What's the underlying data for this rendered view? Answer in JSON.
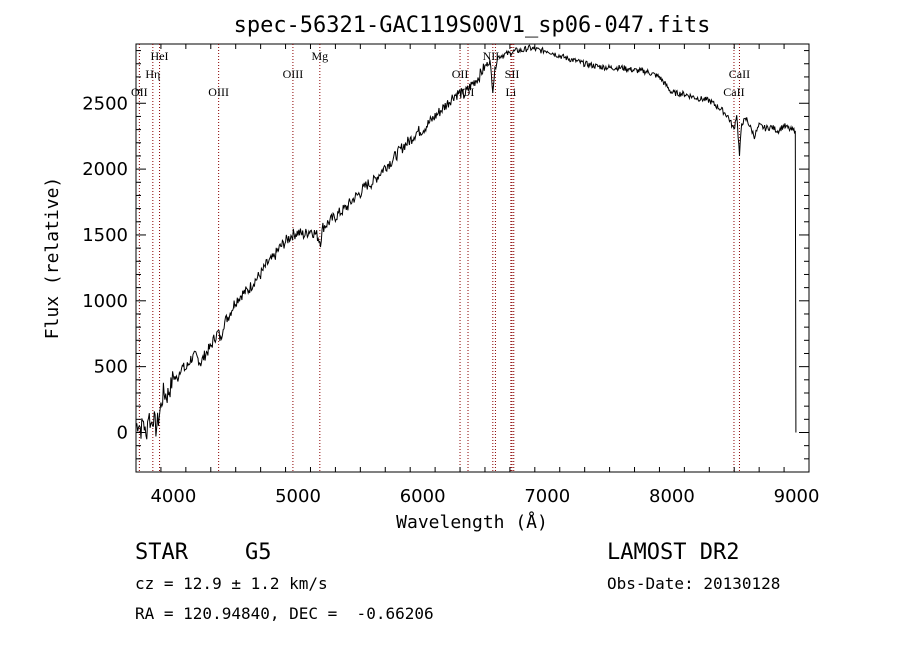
{
  "chart_data": {
    "type": "line",
    "title": "spec-56321-GAC119S00V1_sp06-047.fits",
    "xlabel": "Wavelength (Å)",
    "ylabel": "Flux (relative)",
    "xlim": [
      3700,
      9100
    ],
    "ylim": [
      -300,
      2950
    ],
    "x_ticks": [
      4000,
      5000,
      6000,
      7000,
      8000,
      9000
    ],
    "y_ticks": [
      0,
      500,
      1000,
      1500,
      2000,
      2500
    ],
    "grid": false,
    "series": [
      {
        "x": [
          3700,
          3720,
          3740,
          3760,
          3780,
          3800,
          3820,
          3840,
          3860,
          3880,
          3900,
          3920,
          3950,
          3980,
          4000,
          4030,
          4060,
          4100,
          4140,
          4180,
          4220,
          4260,
          4300,
          4330,
          4360,
          4380,
          4400,
          4450,
          4500,
          4550,
          4600,
          4650,
          4700,
          4750,
          4800,
          4850,
          4900,
          4950,
          5000,
          5050,
          5100,
          5150,
          5180,
          5200,
          5250,
          5300,
          5350,
          5400,
          5450,
          5500,
          5550,
          5600,
          5650,
          5700,
          5750,
          5800,
          5850,
          5900,
          5950,
          6000,
          6050,
          6100,
          6150,
          6200,
          6250,
          6300,
          6330,
          6360,
          6400,
          6450,
          6500,
          6540,
          6563,
          6580,
          6600,
          6650,
          6700,
          6750,
          6800,
          6850,
          6900,
          6950,
          7000,
          7050,
          7100,
          7200,
          7300,
          7400,
          7500,
          7600,
          7700,
          7800,
          7900,
          8000,
          8100,
          8200,
          8300,
          8400,
          8450,
          8498,
          8520,
          8542,
          8560,
          8600,
          8662,
          8700,
          8750,
          8800,
          8850,
          8900,
          8950,
          8990
        ],
        "y": [
          50,
          80,
          20,
          100,
          -50,
          150,
          60,
          120,
          30,
          100,
          200,
          300,
          280,
          350,
          430,
          400,
          500,
          480,
          560,
          580,
          530,
          600,
          650,
          720,
          760,
          700,
          820,
          900,
          1000,
          1050,
          1080,
          1150,
          1200,
          1280,
          1320,
          1400,
          1450,
          1500,
          1520,
          1500,
          1540,
          1500,
          1450,
          1560,
          1600,
          1640,
          1680,
          1720,
          1780,
          1820,
          1880,
          1900,
          1960,
          2020,
          2060,
          2120,
          2180,
          2220,
          2280,
          2300,
          2350,
          2400,
          2450,
          2500,
          2560,
          2580,
          2560,
          2600,
          2650,
          2700,
          2780,
          2820,
          2600,
          2750,
          2850,
          2870,
          2880,
          2900,
          2900,
          2920,
          2910,
          2900,
          2900,
          2880,
          2860,
          2830,
          2800,
          2780,
          2770,
          2770,
          2750,
          2740,
          2700,
          2580,
          2570,
          2540,
          2520,
          2450,
          2400,
          2300,
          2420,
          2100,
          2350,
          2380,
          2250,
          2330,
          2310,
          2320,
          2290,
          2330,
          2300,
          2290
        ]
      }
    ],
    "line_labels": [
      {
        "label": "HeI",
        "x": 3889,
        "row": "top"
      },
      {
        "label": "Hη",
        "x": 3835,
        "row": "middle"
      },
      {
        "label": "OII",
        "x": 3727,
        "row": "low"
      },
      {
        "label": "OIII",
        "x": 4363,
        "row": "low"
      },
      {
        "label": "OIII",
        "x": 4959,
        "row": "middle"
      },
      {
        "label": "Mg",
        "x": 5175,
        "row": "top"
      },
      {
        "label": "OII",
        "x": 6300,
        "row": "middle"
      },
      {
        "label": "OI",
        "x": 6364,
        "row": "low"
      },
      {
        "label": "NII",
        "x": 6548,
        "row": "top"
      },
      {
        "label": "SII",
        "x": 6717,
        "row": "middle"
      },
      {
        "label": "Li",
        "x": 6708,
        "row": "low"
      },
      {
        "label": "CaII",
        "x": 8542,
        "row": "middle"
      },
      {
        "label": "CaII",
        "x": 8498,
        "row": "low"
      }
    ],
    "line_markers_x": [
      3727,
      3835,
      3889,
      4363,
      4959,
      5175,
      6300,
      6364,
      6563,
      6584,
      6708,
      6717,
      6731,
      8498,
      8542
    ]
  },
  "info": {
    "object_class": "STAR",
    "subclass": "G5",
    "survey": "LAMOST DR2",
    "cz": "cz = 12.9 ± 1.2 km/s",
    "obs_date": "Obs-Date: 20130128",
    "coords": "RA = 120.94840, DEC =  -0.66206"
  },
  "colors": {
    "spectrum": "#000000",
    "markers": "#8b0000",
    "text": "#000000"
  }
}
